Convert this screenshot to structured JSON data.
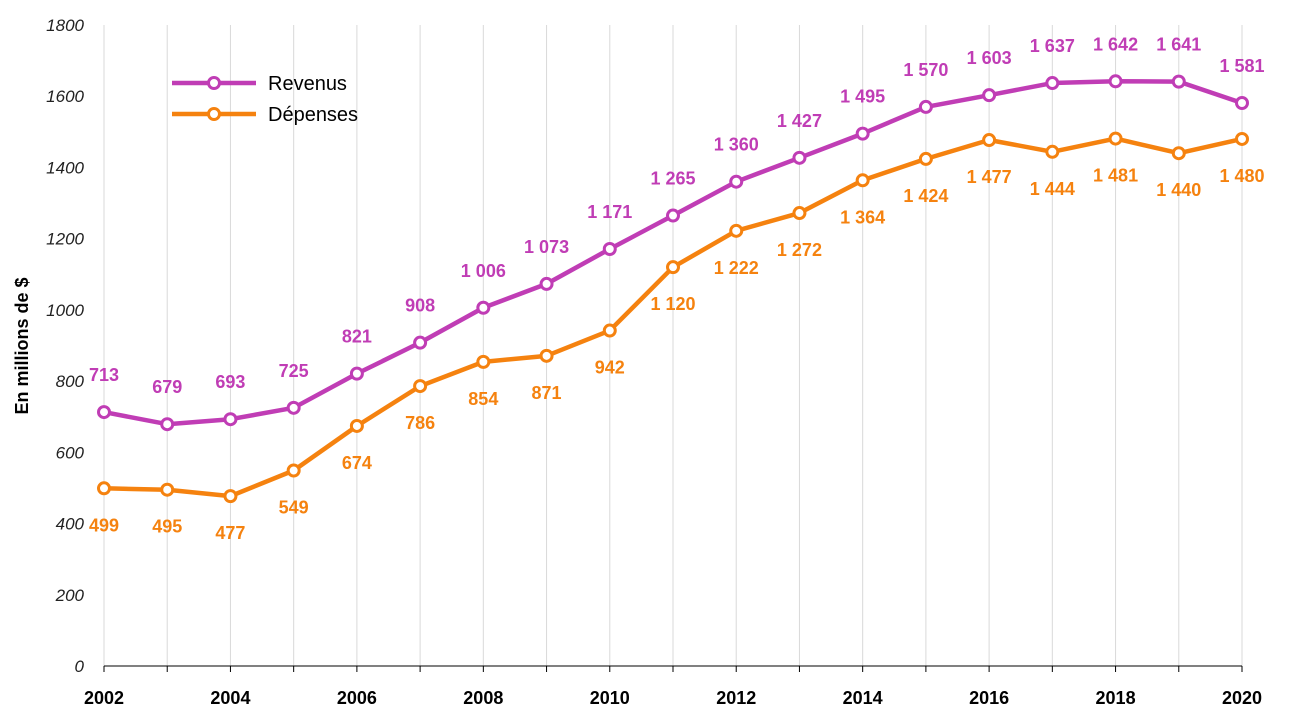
{
  "chart_data": {
    "type": "line",
    "ylabel": "En millions de $",
    "xlabel": "",
    "ylim": [
      0,
      1800
    ],
    "yticks": [
      0,
      200,
      400,
      600,
      800,
      1000,
      1200,
      1400,
      1600,
      1800
    ],
    "xticks": [
      2002,
      2004,
      2006,
      2008,
      2010,
      2012,
      2014,
      2016,
      2018,
      2020
    ],
    "grid": "vertical",
    "legend_position": "top-left",
    "x": [
      2002,
      2003,
      2004,
      2005,
      2006,
      2007,
      2008,
      2009,
      2010,
      2011,
      2012,
      2013,
      2014,
      2015,
      2016,
      2017,
      2018,
      2019,
      2020
    ],
    "series": [
      {
        "name": "Revenus",
        "color": "#c03db5",
        "values": [
          713,
          679,
          693,
          725,
          821,
          908,
          1006,
          1073,
          1171,
          1265,
          1360,
          1427,
          1495,
          1570,
          1603,
          1637,
          1642,
          1641,
          1581
        ],
        "labels": [
          "713",
          "679",
          "693",
          "725",
          "821",
          "908",
          "1 006",
          "1 073",
          "1 171",
          "1 265",
          "1 360",
          "1 427",
          "1 495",
          "1 570",
          "1 603",
          "1 637",
          "1 642",
          "1 641",
          "1 581"
        ]
      },
      {
        "name": "Dépenses",
        "color": "#f5820f",
        "values": [
          499,
          495,
          477,
          549,
          674,
          786,
          854,
          871,
          942,
          1120,
          1222,
          1272,
          1364,
          1424,
          1477,
          1444,
          1481,
          1440,
          1480
        ],
        "labels": [
          "499",
          "495",
          "477",
          "549",
          "674",
          "786",
          "854",
          "871",
          "942",
          "1 120",
          "1 222",
          "1 272",
          "1 364",
          "1 424",
          "1 477",
          "1 444",
          "1 481",
          "1 440",
          "1 480"
        ]
      }
    ]
  }
}
